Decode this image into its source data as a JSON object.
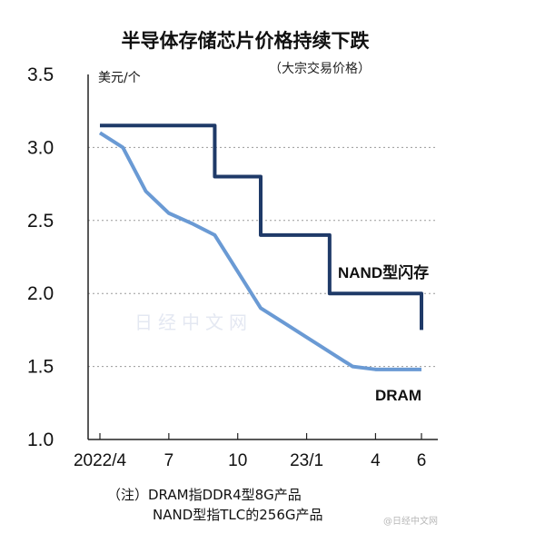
{
  "colors": {
    "nand": "#1f3a68",
    "dram": "#6a9ad4",
    "grid": "#9a9a9a",
    "axis": "#222222"
  },
  "watermark": "日经中文网",
  "corner_mark": "@日经中文网",
  "notes": [
    "（注）DRAM指DDR4型8G产品",
    "NAND型指TLC的256G产品"
  ],
  "chart_data": {
    "type": "line",
    "title": "半导体存储芯片价格持续下跌",
    "subtitle": "（大宗交易价格）",
    "ylabel": "美元/个",
    "xlabel": "",
    "ylim": [
      1.0,
      3.5
    ],
    "yticks": [
      "3.5",
      "3.0",
      "2.5",
      "2.0",
      "1.5",
      "1.0"
    ],
    "xlim": [
      0,
      14
    ],
    "xticks": [
      {
        "x": 0,
        "label": "2022/4"
      },
      {
        "x": 3,
        "label": "7"
      },
      {
        "x": 6,
        "label": "10"
      },
      {
        "x": 9,
        "label": "23/1"
      },
      {
        "x": 12,
        "label": "4"
      },
      {
        "x": 14,
        "label": "6"
      }
    ],
    "grid": "horizontal dashed",
    "series": [
      {
        "name": "NAND型闪存",
        "style": "step",
        "x": [
          0,
          1,
          2,
          3,
          4,
          5,
          6,
          7,
          8,
          9,
          10,
          11,
          12,
          13,
          14
        ],
        "values": [
          3.15,
          3.15,
          3.15,
          3.15,
          3.15,
          2.8,
          2.8,
          2.4,
          2.4,
          2.4,
          2.0,
          2.0,
          2.0,
          2.0,
          1.75
        ]
      },
      {
        "name": "DRAM",
        "style": "line",
        "x": [
          0,
          1,
          2,
          3,
          4,
          5,
          6,
          7,
          8,
          9,
          10,
          11,
          12,
          13,
          14
        ],
        "values": [
          3.1,
          3.0,
          2.7,
          2.55,
          2.48,
          2.4,
          2.15,
          1.9,
          1.8,
          1.7,
          1.6,
          1.5,
          1.48,
          1.48,
          1.48
        ]
      }
    ]
  }
}
